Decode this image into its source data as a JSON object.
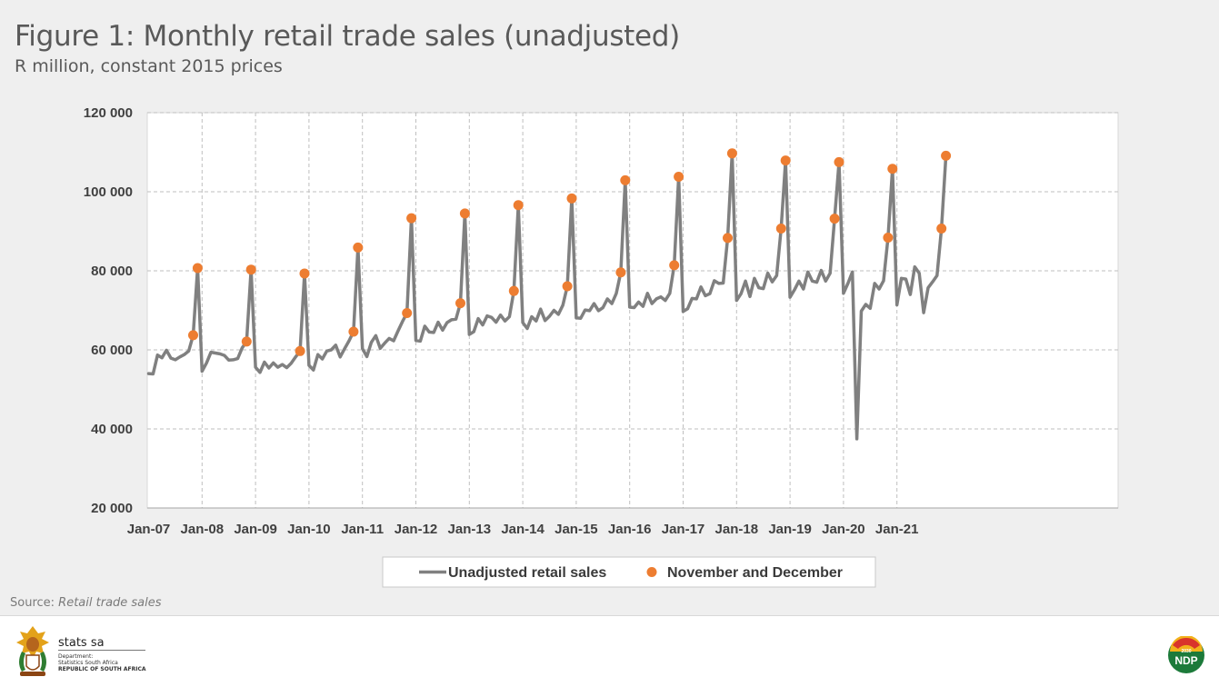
{
  "header": {
    "title": "Figure 1: Monthly retail trade sales (unadjusted)",
    "subtitle": "R million, constant 2015 prices"
  },
  "source": {
    "label": "Source: ",
    "name": "Retail trade sales"
  },
  "footer": {
    "brand": "stats sa",
    "dept_line1": "Department:",
    "dept_line2": "Statistics South Africa",
    "dept_line3": "REPUBLIC OF SOUTH AFRICA",
    "ndp_logo_text": "NDP",
    "ndp_logo_year": "2030"
  },
  "colors": {
    "line": "#808080",
    "markers": "#ed7d31",
    "grid": "#bfbfbf",
    "plot_bg": "#ffffff"
  },
  "chart_data": {
    "type": "line",
    "x_start": "Jan-07",
    "x_tick_labels": [
      "Jan-07",
      "Jan-08",
      "Jan-09",
      "Jan-10",
      "Jan-11",
      "Jan-12",
      "Jan-13",
      "Jan-14",
      "Jan-15",
      "Jan-16",
      "Jan-17",
      "Jan-18",
      "Jan-19",
      "Jan-20",
      "Jan-21"
    ],
    "ylim": [
      20000,
      120000
    ],
    "y_ticks": [
      20000,
      40000,
      60000,
      80000,
      100000,
      120000
    ],
    "y_tick_labels": [
      "20 000",
      "40 000",
      "60 000",
      "80 000",
      "100 000",
      "120 000"
    ],
    "grid": true,
    "legend_position": "bottom",
    "series": [
      {
        "name": "Unadjusted retail sales",
        "style": "line",
        "values": [
          54000,
          53900,
          58700,
          58000,
          59900,
          57900,
          57500,
          58200,
          58800,
          59700,
          63700,
          80700,
          54600,
          56700,
          59400,
          59200,
          59000,
          58600,
          57400,
          57500,
          57800,
          60500,
          62100,
          80300,
          55600,
          54300,
          56900,
          55400,
          56700,
          55600,
          56300,
          55500,
          56600,
          58200,
          59700,
          79300,
          56100,
          54900,
          58800,
          57700,
          59700,
          60000,
          61200,
          58200,
          60300,
          62300,
          64600,
          85900,
          60300,
          58300,
          61900,
          63600,
          60400,
          61700,
          62900,
          62300,
          64800,
          67200,
          69300,
          93300,
          62400,
          62200,
          66000,
          64500,
          64400,
          67000,
          65000,
          66900,
          67600,
          67800,
          71800,
          94500,
          63900,
          64600,
          67900,
          66300,
          68600,
          68200,
          67000,
          68800,
          67300,
          68400,
          74900,
          96600,
          66900,
          65400,
          68400,
          67300,
          70300,
          67400,
          68500,
          70000,
          69000,
          71300,
          76100,
          98300,
          68100,
          68000,
          70100,
          69900,
          71700,
          69900,
          70700,
          72900,
          71700,
          74300,
          79600,
          102900,
          70800,
          70700,
          72100,
          71000,
          74300,
          71700,
          72900,
          73400,
          72500,
          74300,
          81400,
          103800,
          69700,
          70400,
          73000,
          72900,
          75900,
          73700,
          74200,
          77500,
          76800,
          76900,
          88300,
          109700,
          72500,
          74200,
          77400,
          73500,
          78100,
          75700,
          75500,
          79400,
          77200,
          78800,
          90700,
          107900,
          73300,
          75200,
          77400,
          75400,
          79700,
          77400,
          77100,
          80100,
          77400,
          79400,
          93200,
          107500,
          74300,
          76800,
          79700,
          37500,
          69800,
          71500,
          70500,
          76800,
          75400,
          77500,
          88400,
          105800,
          71400,
          78100,
          77900,
          74000,
          81000,
          79400,
          69400,
          75700,
          77200,
          78800,
          90700,
          109100
        ]
      },
      {
        "name": "November and December",
        "style": "markers",
        "points": [
          [
            10,
            63700
          ],
          [
            11,
            80700
          ],
          [
            22,
            62100
          ],
          [
            23,
            80300
          ],
          [
            34,
            59700
          ],
          [
            35,
            79300
          ],
          [
            46,
            64600
          ],
          [
            47,
            85900
          ],
          [
            58,
            69300
          ],
          [
            59,
            93300
          ],
          [
            70,
            71800
          ],
          [
            71,
            94500
          ],
          [
            82,
            74900
          ],
          [
            83,
            96600
          ],
          [
            94,
            76100
          ],
          [
            95,
            98300
          ],
          [
            106,
            79600
          ],
          [
            107,
            102900
          ],
          [
            118,
            81400
          ],
          [
            119,
            103800
          ],
          [
            130,
            88300
          ],
          [
            131,
            109700
          ],
          [
            142,
            90700
          ],
          [
            143,
            107900
          ],
          [
            154,
            93200
          ],
          [
            155,
            107500
          ],
          [
            166,
            88400
          ],
          [
            167,
            105800
          ],
          [
            178,
            90700
          ],
          [
            179,
            109100
          ]
        ]
      }
    ]
  }
}
